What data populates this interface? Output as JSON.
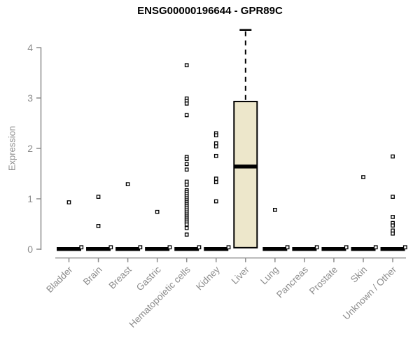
{
  "chart_data": {
    "type": "boxplot",
    "title": "ENSG00000196644 - GPR89C",
    "ylabel": "Expression",
    "ylim": [
      0,
      4.4
    ],
    "yticks": [
      0,
      1,
      2,
      3,
      4
    ],
    "grid": false,
    "legend": false,
    "categories": [
      "Bladder",
      "Brain",
      "Breast",
      "Gastric",
      "Hematopoietic cells",
      "Kidney",
      "Liver",
      "Lung",
      "Pancreas",
      "Prostate",
      "Skin",
      "Unknown / Other"
    ],
    "boxes": [
      {
        "category": "Bladder",
        "q1": 0,
        "median": 0,
        "q3": 0,
        "whisker_low": 0,
        "whisker_high": 0,
        "collapsed": true
      },
      {
        "category": "Brain",
        "q1": 0,
        "median": 0,
        "q3": 0,
        "whisker_low": 0,
        "whisker_high": 0,
        "collapsed": true
      },
      {
        "category": "Breast",
        "q1": 0,
        "median": 0,
        "q3": 0,
        "whisker_low": 0,
        "whisker_high": 0,
        "collapsed": true
      },
      {
        "category": "Gastric",
        "q1": 0,
        "median": 0,
        "q3": 0,
        "whisker_low": 0,
        "whisker_high": 0,
        "collapsed": true
      },
      {
        "category": "Hematopoietic cells",
        "q1": 0,
        "median": 0,
        "q3": 0,
        "whisker_low": 0,
        "whisker_high": 0,
        "collapsed": true
      },
      {
        "category": "Kidney",
        "q1": 0,
        "median": 0,
        "q3": 0,
        "whisker_low": 0,
        "whisker_high": 0,
        "collapsed": true
      },
      {
        "category": "Liver",
        "q1": 0.03,
        "median": 1.64,
        "q3": 2.93,
        "whisker_low": 0.03,
        "whisker_high": 4.35,
        "collapsed": false
      },
      {
        "category": "Lung",
        "q1": 0,
        "median": 0,
        "q3": 0,
        "whisker_low": 0,
        "whisker_high": 0,
        "collapsed": true
      },
      {
        "category": "Pancreas",
        "q1": 0,
        "median": 0,
        "q3": 0,
        "whisker_low": 0,
        "whisker_high": 0,
        "collapsed": true
      },
      {
        "category": "Prostate",
        "q1": 0,
        "median": 0,
        "q3": 0,
        "whisker_low": 0,
        "whisker_high": 0,
        "collapsed": true
      },
      {
        "category": "Skin",
        "q1": 0,
        "median": 0,
        "q3": 0,
        "whisker_low": 0,
        "whisker_high": 0,
        "collapsed": true
      },
      {
        "category": "Unknown / Other",
        "q1": 0,
        "median": 0,
        "q3": 0,
        "whisker_low": 0,
        "whisker_high": 0,
        "collapsed": true
      }
    ],
    "outliers": [
      [
        0.93
      ],
      [
        1.04,
        0.46
      ],
      [
        1.29
      ],
      [
        0.74
      ],
      [
        3.65,
        2.99,
        2.94,
        2.89,
        2.66,
        1.83,
        1.79,
        1.69,
        1.58,
        1.34,
        1.28,
        1.17,
        1.13,
        1.09,
        1.05,
        1.01,
        0.97,
        0.93,
        0.89,
        0.85,
        0.81,
        0.77,
        0.73,
        0.69,
        0.65,
        0.61,
        0.57,
        0.53,
        0.49,
        0.42,
        0.29
      ],
      [
        2.3,
        2.26,
        2.1,
        2.04,
        1.85,
        1.4,
        1.33,
        0.95
      ],
      [],
      [
        0.78
      ],
      [],
      [],
      [
        1.43
      ],
      [
        1.84,
        1.04,
        0.64,
        0.52,
        0.47,
        0.37,
        0.31
      ]
    ],
    "colors": {
      "box_fill": "#EDE7CB",
      "box_line": "#000000",
      "axis": "#8C8C8C",
      "title": "#000000",
      "background": "#FFFFFF"
    }
  }
}
